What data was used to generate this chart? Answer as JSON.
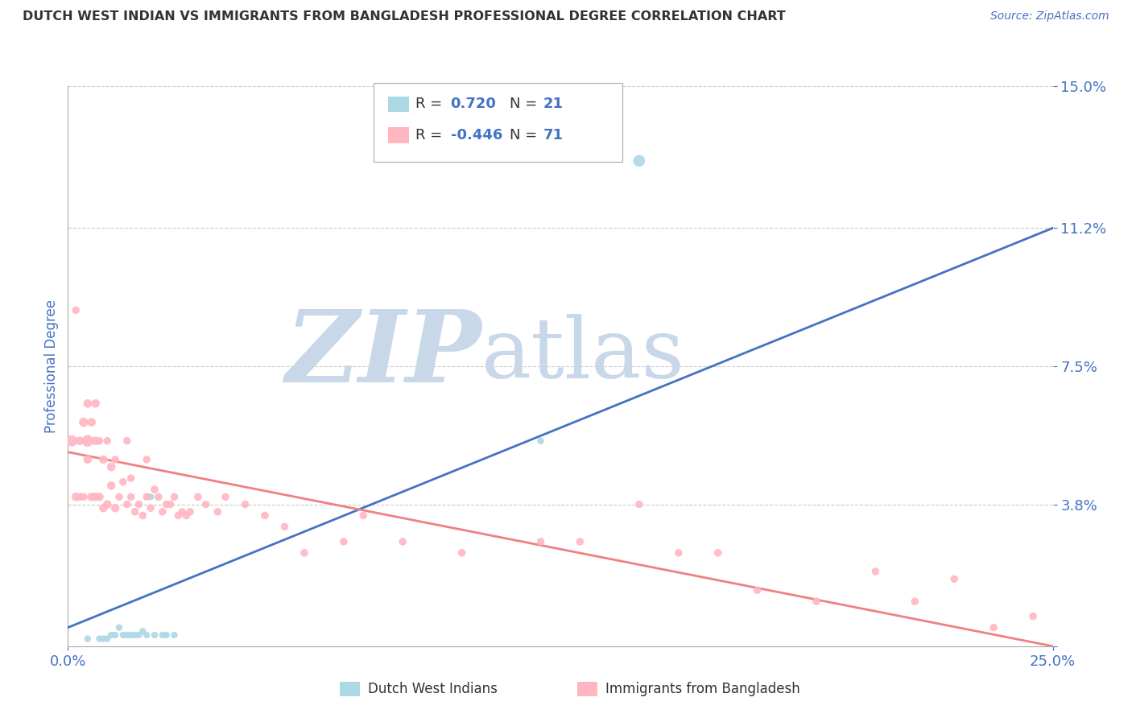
{
  "title": "DUTCH WEST INDIAN VS IMMIGRANTS FROM BANGLADESH PROFESSIONAL DEGREE CORRELATION CHART",
  "source": "Source: ZipAtlas.com",
  "ylabel": "Professional Degree",
  "xmin": 0.0,
  "xmax": 0.25,
  "ymin": 0.0,
  "ymax": 0.15,
  "yticks": [
    0.0,
    0.038,
    0.075,
    0.112,
    0.15
  ],
  "ytick_labels": [
    "",
    "3.8%",
    "7.5%",
    "11.2%",
    "15.0%"
  ],
  "xtick_labels": [
    "0.0%",
    "25.0%"
  ],
  "blue_color": "#4472C4",
  "pink_color": "#F08080",
  "pink_scatter_color": "#FFB6C1",
  "blue_scatter_color": "#ADD8E6",
  "legend_R_blue": "0.720",
  "legend_N_blue": "21",
  "legend_R_pink": "-0.446",
  "legend_N_pink": "71",
  "legend_label_blue": "Dutch West Indians",
  "legend_label_pink": "Immigrants from Bangladesh",
  "watermark_zip": "ZIP",
  "watermark_atlas": "atlas",
  "blue_line_start_x": 0.0,
  "blue_line_start_y": 0.005,
  "blue_line_end_x": 0.25,
  "blue_line_end_y": 0.112,
  "pink_line_start_x": 0.0,
  "pink_line_start_y": 0.052,
  "pink_line_end_x": 0.25,
  "pink_line_end_y": 0.0,
  "blue_points_x": [
    0.005,
    0.008,
    0.009,
    0.01,
    0.011,
    0.012,
    0.013,
    0.014,
    0.015,
    0.016,
    0.017,
    0.018,
    0.019,
    0.02,
    0.021,
    0.022,
    0.024,
    0.025,
    0.027,
    0.12,
    0.145
  ],
  "blue_points_y": [
    0.002,
    0.002,
    0.002,
    0.002,
    0.003,
    0.003,
    0.005,
    0.003,
    0.003,
    0.003,
    0.003,
    0.003,
    0.004,
    0.003,
    0.04,
    0.003,
    0.003,
    0.003,
    0.003,
    0.055,
    0.13
  ],
  "blue_sizes": [
    30,
    30,
    30,
    30,
    30,
    30,
    30,
    30,
    30,
    30,
    30,
    30,
    30,
    30,
    30,
    30,
    30,
    30,
    30,
    30,
    100
  ],
  "pink_points_x": [
    0.001,
    0.002,
    0.002,
    0.003,
    0.003,
    0.004,
    0.004,
    0.005,
    0.005,
    0.005,
    0.006,
    0.006,
    0.007,
    0.007,
    0.007,
    0.008,
    0.008,
    0.009,
    0.009,
    0.01,
    0.01,
    0.011,
    0.011,
    0.012,
    0.012,
    0.013,
    0.014,
    0.015,
    0.015,
    0.016,
    0.016,
    0.017,
    0.018,
    0.019,
    0.02,
    0.02,
    0.021,
    0.022,
    0.023,
    0.024,
    0.025,
    0.026,
    0.027,
    0.028,
    0.029,
    0.03,
    0.031,
    0.033,
    0.035,
    0.038,
    0.04,
    0.045,
    0.05,
    0.055,
    0.06,
    0.07,
    0.075,
    0.085,
    0.1,
    0.12,
    0.13,
    0.145,
    0.155,
    0.165,
    0.175,
    0.19,
    0.205,
    0.215,
    0.225,
    0.235,
    0.245
  ],
  "pink_points_y": [
    0.055,
    0.04,
    0.09,
    0.055,
    0.04,
    0.06,
    0.04,
    0.055,
    0.05,
    0.065,
    0.04,
    0.06,
    0.04,
    0.055,
    0.065,
    0.04,
    0.055,
    0.037,
    0.05,
    0.038,
    0.055,
    0.043,
    0.048,
    0.037,
    0.05,
    0.04,
    0.044,
    0.038,
    0.055,
    0.04,
    0.045,
    0.036,
    0.038,
    0.035,
    0.04,
    0.05,
    0.037,
    0.042,
    0.04,
    0.036,
    0.038,
    0.038,
    0.04,
    0.035,
    0.036,
    0.035,
    0.036,
    0.04,
    0.038,
    0.036,
    0.04,
    0.038,
    0.035,
    0.032,
    0.025,
    0.028,
    0.035,
    0.028,
    0.025,
    0.028,
    0.028,
    0.038,
    0.025,
    0.025,
    0.015,
    0.012,
    0.02,
    0.012,
    0.018,
    0.005,
    0.008
  ],
  "pink_sizes": [
    90,
    50,
    40,
    50,
    40,
    60,
    40,
    100,
    50,
    50,
    50,
    50,
    50,
    50,
    50,
    50,
    40,
    50,
    50,
    50,
    40,
    50,
    50,
    50,
    40,
    40,
    40,
    40,
    40,
    40,
    40,
    40,
    40,
    40,
    40,
    40,
    40,
    40,
    40,
    40,
    40,
    40,
    40,
    40,
    40,
    40,
    40,
    40,
    40,
    40,
    40,
    40,
    40,
    40,
    40,
    40,
    40,
    40,
    40,
    40,
    40,
    40,
    40,
    40,
    40,
    40,
    40,
    40,
    40,
    40,
    40
  ],
  "title_color": "#333333",
  "axis_color": "#4472C4",
  "grid_color": "#CCCCCC",
  "watermark_color_zip": "#C8D8E8",
  "watermark_color_atlas": "#C8D8E8",
  "background_color": "#FFFFFF"
}
